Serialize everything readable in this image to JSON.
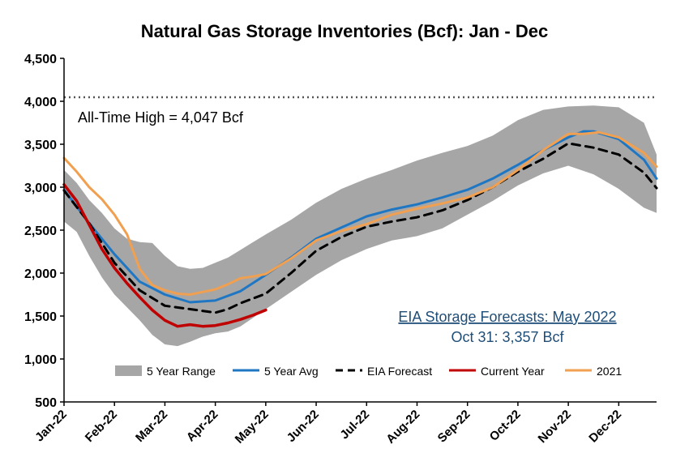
{
  "chart_data": {
    "type": "line",
    "title": "Natural Gas Storage Inventories (Bcf): Jan - Dec",
    "xlabel": "",
    "ylabel": "",
    "ylim": [
      500,
      4500
    ],
    "y_ticks": [
      "500",
      "1,000",
      "1,500",
      "2,000",
      "2,500",
      "3,000",
      "3,500",
      "4,000",
      "4,500"
    ],
    "y_tick_values": [
      500,
      1000,
      1500,
      2000,
      2500,
      3000,
      3500,
      4000,
      4500
    ],
    "x_ticks": [
      "Jan-22",
      "Feb-22",
      "Mar-22",
      "Apr-22",
      "May-22",
      "Jun-22",
      "Jul-22",
      "Aug-22",
      "Sep-22",
      "Oct-22",
      "Nov-22",
      "Dec-22"
    ],
    "grid": false,
    "legend_position": "bottom",
    "legend": {
      "range": "5 Year Range",
      "avg": "5 Year Avg",
      "forecast": "EIA Forecast",
      "current": "Current Year",
      "y2021": "2021"
    },
    "colors": {
      "range": "#a6a6a6",
      "avg": "#1f77c4",
      "forecast": "#000000",
      "current": "#c00000",
      "y2021": "#f0a050",
      "annotation_blue": "#1f4e79"
    },
    "reference_line": {
      "value": 4047,
      "label": "All-Time High = 4,047 Bcf"
    },
    "annotation": {
      "line1": "EIA Storage Forecasts: May 2022",
      "line2": "Oct 31: 3,357 Bcf"
    },
    "series": [
      {
        "key": "range_high",
        "x": [
          0,
          0.25,
          0.5,
          0.75,
          1,
          1.25,
          1.5,
          1.75,
          2,
          2.25,
          2.5,
          2.75,
          3,
          3.25,
          3.5,
          3.75,
          4,
          4.5,
          5,
          5.5,
          6,
          6.5,
          7,
          7.5,
          8,
          8.5,
          9,
          9.5,
          10,
          10.5,
          11,
          11.5,
          11.75
        ],
        "values": [
          3200,
          3050,
          2850,
          2700,
          2520,
          2400,
          2360,
          2350,
          2200,
          2080,
          2050,
          2060,
          2120,
          2180,
          2270,
          2360,
          2450,
          2620,
          2820,
          2980,
          3100,
          3200,
          3310,
          3400,
          3480,
          3600,
          3780,
          3900,
          3940,
          3950,
          3930,
          3750,
          3380
        ]
      },
      {
        "key": "range_low",
        "x": [
          0,
          0.25,
          0.5,
          0.75,
          1,
          1.25,
          1.5,
          1.75,
          2,
          2.25,
          2.5,
          2.75,
          3,
          3.25,
          3.5,
          3.75,
          4,
          4.5,
          5,
          5.5,
          6,
          6.5,
          7,
          7.5,
          8,
          8.5,
          9,
          9.5,
          10,
          10.5,
          11,
          11.5,
          11.75
        ],
        "values": [
          2600,
          2480,
          2200,
          1950,
          1750,
          1600,
          1450,
          1280,
          1170,
          1150,
          1200,
          1260,
          1300,
          1320,
          1380,
          1480,
          1580,
          1780,
          1980,
          2150,
          2280,
          2380,
          2430,
          2520,
          2680,
          2840,
          3020,
          3160,
          3250,
          3150,
          2980,
          2760,
          2700
        ]
      },
      {
        "key": "avg",
        "name": "5 Year Avg",
        "x": [
          0,
          0.5,
          1,
          1.5,
          2,
          2.5,
          3,
          3.5,
          4,
          4.5,
          5,
          5.5,
          6,
          6.5,
          7,
          7.5,
          8,
          8.5,
          9,
          9.5,
          10,
          10.3,
          10.5,
          11,
          11.5,
          11.75
        ],
        "values": [
          2970,
          2580,
          2220,
          1900,
          1750,
          1660,
          1680,
          1790,
          1980,
          2180,
          2400,
          2530,
          2660,
          2740,
          2800,
          2880,
          2970,
          3100,
          3260,
          3430,
          3580,
          3650,
          3650,
          3560,
          3320,
          3100
        ]
      },
      {
        "key": "forecast",
        "name": "EIA Forecast",
        "x": [
          0,
          0.5,
          1,
          1.5,
          2,
          2.5,
          3,
          3.25,
          3.5,
          4,
          4.5,
          5,
          5.5,
          6,
          6.5,
          7,
          7.5,
          8,
          8.5,
          9,
          9.5,
          10,
          10.5,
          11,
          11.5,
          11.75
        ],
        "values": [
          2960,
          2580,
          2120,
          1800,
          1620,
          1580,
          1540,
          1580,
          1650,
          1760,
          2000,
          2260,
          2420,
          2540,
          2600,
          2650,
          2730,
          2850,
          3000,
          3180,
          3330,
          3510,
          3460,
          3380,
          3170,
          2990
        ]
      },
      {
        "key": "current",
        "name": "Current Year",
        "x": [
          0,
          0.25,
          0.5,
          0.75,
          1,
          1.25,
          1.5,
          1.75,
          2,
          2.25,
          2.5,
          2.75,
          3,
          3.25,
          3.5,
          3.75,
          4
        ],
        "values": [
          3030,
          2840,
          2560,
          2280,
          2060,
          1880,
          1720,
          1570,
          1450,
          1380,
          1400,
          1380,
          1390,
          1420,
          1460,
          1510,
          1570
        ]
      },
      {
        "key": "y2021",
        "name": "2021",
        "x": [
          0,
          0.25,
          0.5,
          0.75,
          1,
          1.25,
          1.5,
          1.75,
          2,
          2.25,
          2.5,
          2.75,
          3,
          3.25,
          3.5,
          3.75,
          4,
          4.5,
          5,
          5.5,
          6,
          6.5,
          7,
          7.5,
          8,
          8.5,
          9,
          9.5,
          10,
          10.3,
          10.6,
          11,
          11.5,
          11.75
        ],
        "values": [
          3340,
          3180,
          3000,
          2860,
          2680,
          2450,
          2050,
          1860,
          1800,
          1760,
          1750,
          1780,
          1810,
          1870,
          1940,
          1960,
          1990,
          2170,
          2380,
          2490,
          2570,
          2680,
          2750,
          2810,
          2880,
          3000,
          3200,
          3430,
          3620,
          3620,
          3640,
          3580,
          3400,
          3240
        ]
      }
    ]
  }
}
